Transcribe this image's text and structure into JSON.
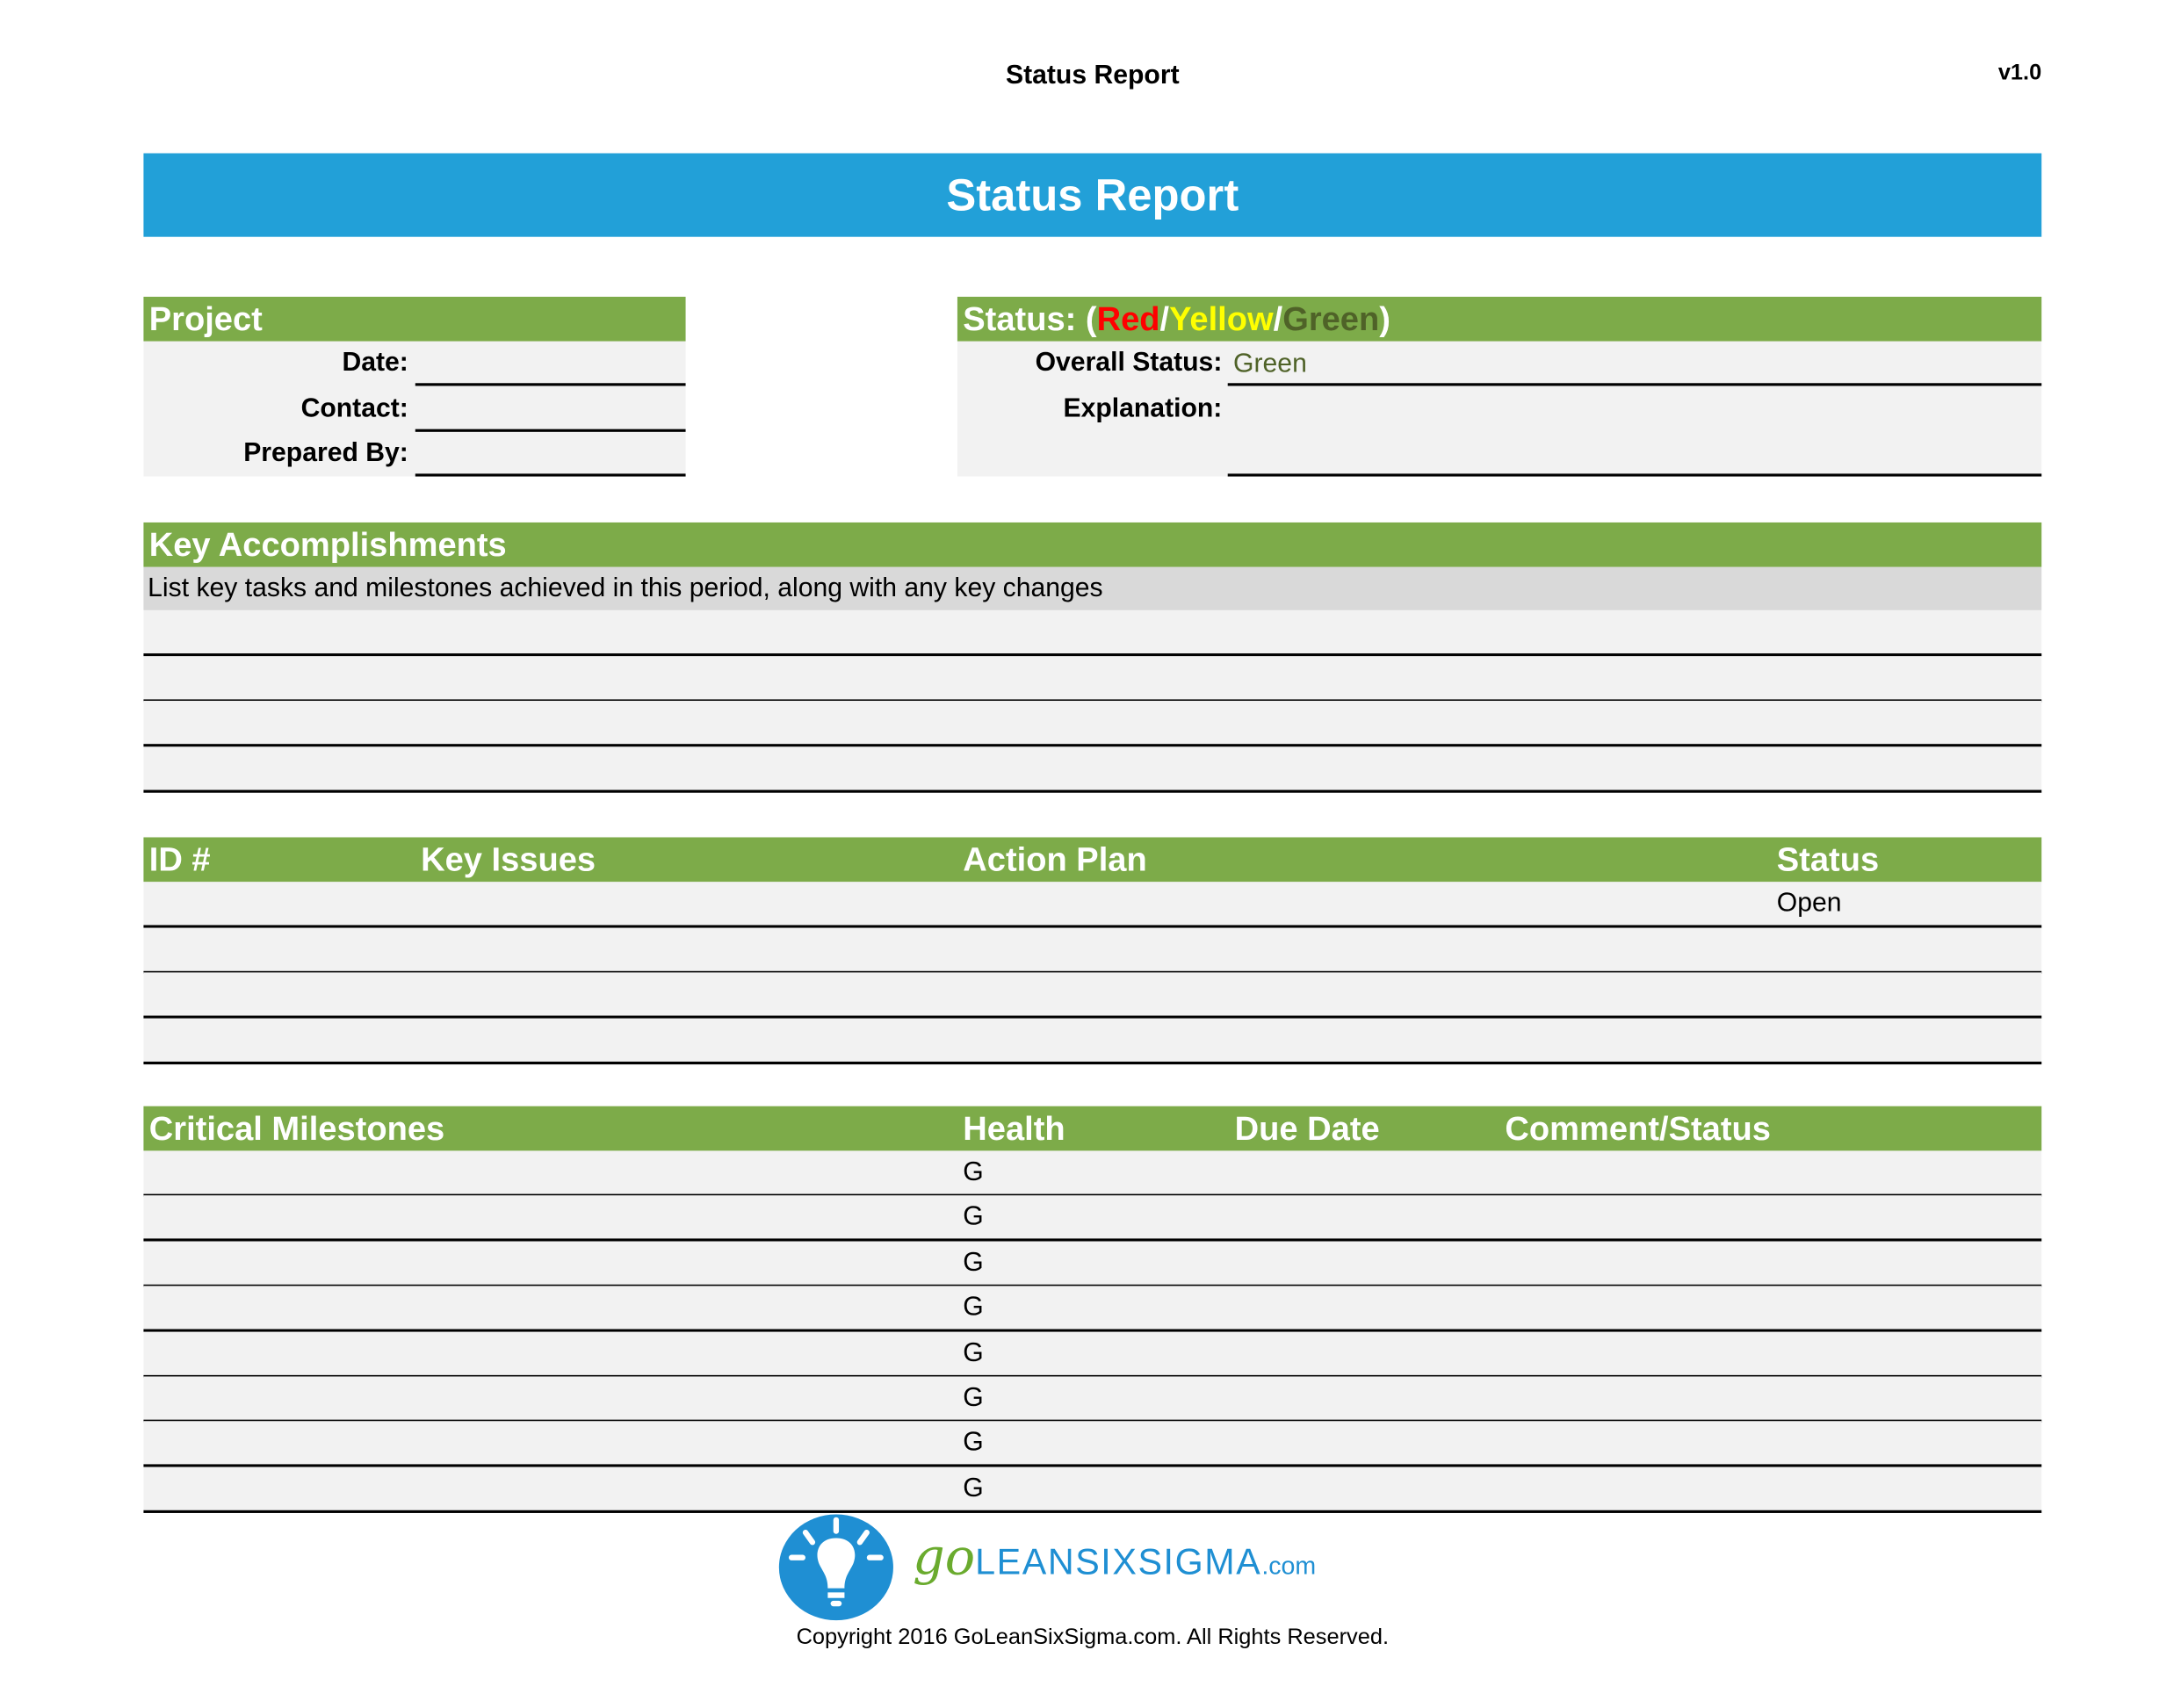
{
  "header": {
    "title": "Status Report",
    "version": "v1.0"
  },
  "banner": {
    "title": "Status Report"
  },
  "project": {
    "heading": "Project",
    "fields": [
      {
        "label": "Date:",
        "value": ""
      },
      {
        "label": "Contact:",
        "value": ""
      },
      {
        "label": "Prepared By:",
        "value": ""
      }
    ]
  },
  "status": {
    "heading_prefix": "Status: (",
    "red": "Red",
    "slash1": "/",
    "yellow": "Yellow",
    "slash2": "/",
    "green": "Green",
    "heading_suffix": ")",
    "overall_label": "Overall Status:",
    "overall_value": "Green",
    "explanation_label": "Explanation:",
    "explanation_value": "",
    "colors": {
      "red": "#ff0000",
      "yellow": "#ffff00",
      "green": "#4f6228",
      "header": "#7dab49",
      "banner": "#22a0d8"
    }
  },
  "accomplishments": {
    "heading": "Key Accomplishments",
    "description": "List key tasks and milestones achieved in this period, along with any key changes",
    "rows": [
      "",
      "",
      "",
      ""
    ]
  },
  "issues": {
    "columns": [
      "ID #",
      "Key Issues",
      "Action Plan",
      "Status"
    ],
    "rows": [
      [
        "",
        "",
        "",
        "Open"
      ],
      [
        "",
        "",
        "",
        ""
      ],
      [
        "",
        "",
        "",
        ""
      ],
      [
        "",
        "",
        "",
        ""
      ]
    ]
  },
  "milestones": {
    "columns": [
      "Critical Milestones",
      "Health",
      "Due Date",
      "Comment/Status"
    ],
    "rows": [
      [
        "",
        "G",
        "",
        ""
      ],
      [
        "",
        "G",
        "",
        ""
      ],
      [
        "",
        "G",
        "",
        ""
      ],
      [
        "",
        "G",
        "",
        ""
      ],
      [
        "",
        "G",
        "",
        ""
      ],
      [
        "",
        "G",
        "",
        ""
      ],
      [
        "",
        "G",
        "",
        ""
      ],
      [
        "",
        "G",
        "",
        ""
      ]
    ]
  },
  "footer": {
    "logo_text_go": "go",
    "logo_text_main": "LEANSIXSIGMA",
    "logo_text_com": ".com",
    "copyright": "Copyright 2016 GoLeanSixSigma.com. All Rights Reserved."
  }
}
